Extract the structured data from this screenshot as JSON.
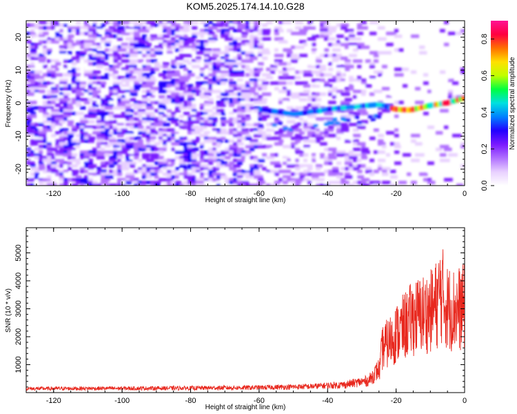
{
  "chart_data": [
    {
      "type": "heatmap",
      "title": "KOM5.2025.174.14.10.G28",
      "xlabel": "Height of straight line (km)",
      "ylabel": "Frequency (Hz)",
      "xlim": [
        -128,
        0
      ],
      "ylim": [
        -25,
        25
      ],
      "x_ticks": [
        -120,
        -100,
        -80,
        -60,
        -40,
        -20,
        0
      ],
      "y_ticks": [
        -20,
        -10,
        0,
        10,
        20
      ],
      "colorbar": {
        "label": "Normalized spectral amplitude",
        "range": [
          0,
          0.9
        ],
        "ticks": [
          0.0,
          0.2,
          0.4,
          0.6,
          0.8
        ],
        "colors": [
          "#ffffff",
          "#e8d0ff",
          "#b070ff",
          "#7a1aff",
          "#2200ff",
          "#0080ff",
          "#00e0e0",
          "#00ff40",
          "#c0ff00",
          "#ffe000",
          "#ff7000",
          "#ff0040",
          "#ff1493"
        ]
      },
      "ridge": {
        "description_points_km_hz": [
          [
            -60,
            -2
          ],
          [
            -50,
            -3.5
          ],
          [
            -40,
            -2
          ],
          [
            -30,
            -1
          ],
          [
            -25,
            -0.5
          ],
          [
            -20,
            -2
          ],
          [
            -16,
            -2.2
          ],
          [
            -10,
            -0.8
          ],
          [
            -5,
            0
          ],
          [
            0,
            1.5
          ]
        ]
      }
    },
    {
      "type": "line",
      "xlabel": "Height of straight line (km)",
      "ylabel": "SNR (10 * v/v)",
      "xlim": [
        -128,
        0
      ],
      "ylim": [
        0,
        5900
      ],
      "x_ticks": [
        -120,
        -100,
        -80,
        -60,
        -40,
        -20,
        0
      ],
      "y_ticks": [
        1000,
        2000,
        3000,
        4000,
        5000
      ],
      "color": "#e8281e",
      "envelope": {
        "x": [
          -128,
          -100,
          -80,
          -60,
          -45,
          -35,
          -28,
          -25,
          -24,
          -22,
          -20,
          -18,
          -15,
          -12,
          -10,
          -8,
          -7,
          -6,
          -5,
          -3,
          0
        ],
        "y": [
          150,
          160,
          170,
          190,
          230,
          300,
          450,
          900,
          2200,
          2500,
          2900,
          3200,
          3700,
          3900,
          4000,
          4400,
          5000,
          4600,
          4200,
          4100,
          4200
        ]
      }
    }
  ]
}
